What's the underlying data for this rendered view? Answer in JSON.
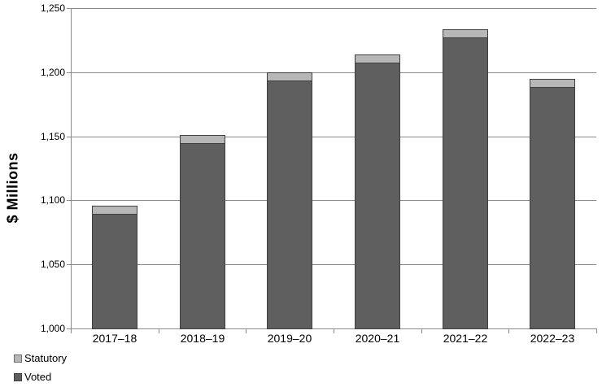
{
  "chart_data": {
    "type": "bar",
    "stacked": true,
    "title": "",
    "ylabel": "$ Millions",
    "xlabel": "",
    "ylim": [
      1000,
      1250
    ],
    "ytick_step": 50,
    "ytick_labels": [
      "1,000",
      "1,050",
      "1,100",
      "1,150",
      "1,200",
      "1,250"
    ],
    "grid": true,
    "categories": [
      "2017–18",
      "2018–19",
      "2019–20",
      "2020–21",
      "2021–22",
      "2022–23"
    ],
    "series": [
      {
        "name": "Voted",
        "color": "#5F5F5F",
        "values": [
          1090,
          1145,
          1194,
          1208,
          1228,
          1189
        ]
      },
      {
        "name": "Statutory",
        "color": "#B7B7B7",
        "values": [
          7,
          7,
          7,
          7,
          7,
          7
        ]
      }
    ],
    "totals": [
      1097,
      1152,
      1201,
      1215,
      1235,
      1196
    ],
    "legend_position": "bottom-left",
    "legend": [
      {
        "label": "Statutory",
        "color": "#B7B7B7"
      },
      {
        "label": "Voted",
        "color": "#5F5F5F"
      }
    ],
    "colors": {
      "gridline": "#8A8A8A",
      "axis": "#8A8A8A",
      "bar_border": "#3F3F3F",
      "text": "#000000",
      "background": "#FFFFFF"
    }
  }
}
